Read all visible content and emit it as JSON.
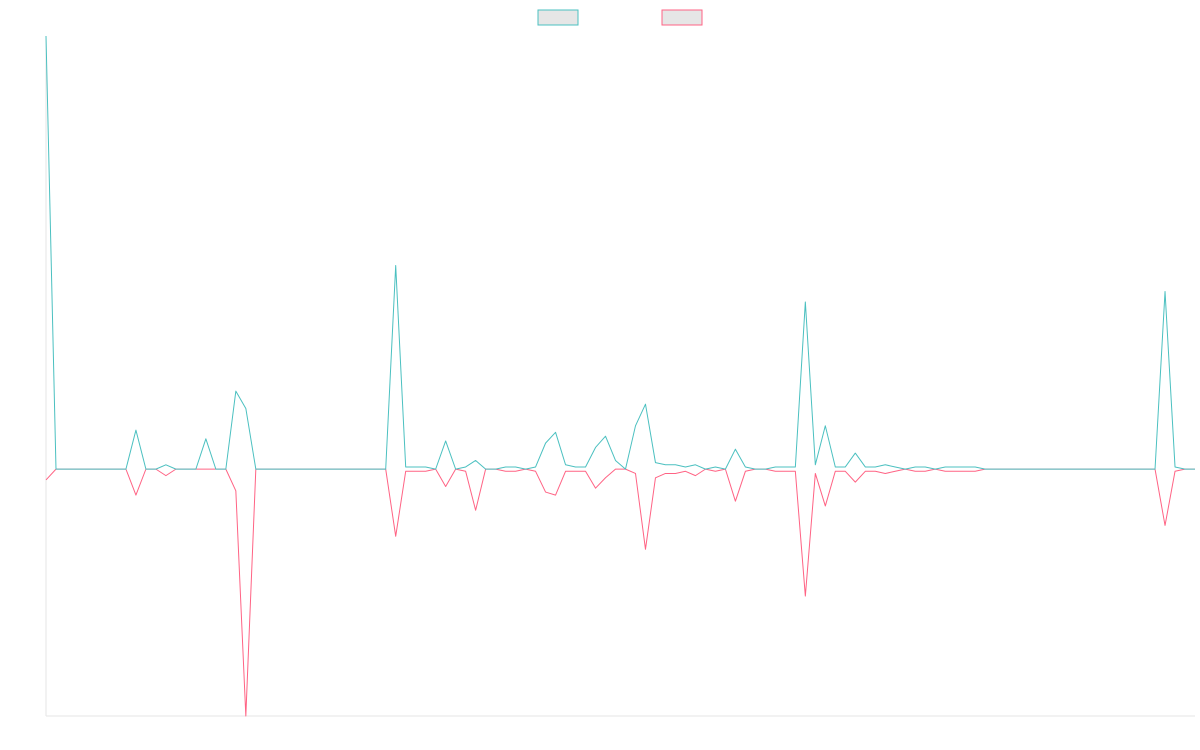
{
  "chart_data": {
    "type": "line",
    "categories": [
      null,
      null,
      null,
      null,
      null,
      null,
      null,
      null,
      null,
      null,
      null,
      null,
      null,
      null,
      null,
      null,
      null,
      null,
      null,
      null,
      null,
      null,
      null,
      null,
      null,
      null,
      null,
      null,
      null,
      null,
      null,
      null,
      null,
      null,
      null,
      null,
      null,
      null,
      null,
      null,
      null,
      null,
      null,
      null,
      null,
      null,
      null,
      null,
      null,
      null,
      null,
      null,
      null,
      null,
      null,
      null,
      null,
      null,
      null,
      null,
      null,
      null,
      null,
      null,
      null,
      null,
      null,
      null,
      null,
      null,
      null,
      null,
      null,
      null,
      null,
      null,
      null,
      null,
      null,
      null,
      null,
      null,
      null,
      null,
      null,
      null,
      null,
      null,
      null,
      null,
      null,
      null,
      null,
      null,
      null,
      null,
      null,
      null,
      null,
      null,
      null,
      null,
      null,
      null,
      null,
      null,
      null,
      null,
      null,
      null,
      null,
      null,
      null,
      null,
      null,
      null
    ],
    "series": [
      {
        "color": "#4bc0c0",
        "values": [
          100,
          0,
          0,
          0,
          0,
          0,
          0,
          0,
          0,
          9,
          0,
          0,
          1,
          0,
          0,
          0,
          7,
          0,
          0,
          18,
          14,
          0,
          0,
          0,
          0,
          0,
          0,
          0,
          0,
          0,
          0,
          0,
          0,
          0,
          0,
          47,
          0.5,
          0.5,
          0.5,
          0,
          6.5,
          0,
          0.5,
          2,
          0,
          0,
          0.5,
          0.5,
          0,
          0.5,
          6,
          8.5,
          1,
          0.5,
          0.5,
          5,
          7.6,
          2,
          0,
          10,
          15,
          1.5,
          1,
          1,
          0.5,
          1,
          0,
          0.5,
          0,
          4.6,
          0.5,
          0,
          0,
          0.5,
          0.5,
          0.5,
          38.6,
          1,
          10,
          0.5,
          0.5,
          3.7,
          0.5,
          0.5,
          1,
          0.5,
          0,
          0.5,
          0.5,
          0,
          0.5,
          0.5,
          0.5,
          0.5,
          0,
          0,
          0,
          0,
          0,
          0,
          0,
          0,
          0,
          0,
          0,
          0,
          0,
          0,
          0,
          0,
          0,
          0,
          41,
          0.5,
          0,
          0
        ]
      },
      {
        "color": "#ff6384",
        "values": [
          -2.5,
          0,
          0,
          0,
          0,
          0,
          0,
          0,
          0,
          -6,
          0,
          0,
          -1.5,
          0,
          0,
          0,
          0,
          0,
          0,
          -5,
          -57,
          0,
          0,
          0,
          0,
          0,
          0,
          0,
          0,
          0,
          0,
          0,
          0,
          0,
          0,
          -15.5,
          -0.5,
          -0.5,
          -0.5,
          0,
          -4,
          0,
          -0.5,
          -9.5,
          0,
          0,
          -0.5,
          -0.5,
          0,
          -0.5,
          -5.3,
          -6,
          -0.5,
          -0.5,
          -0.5,
          -4.4,
          -2,
          0,
          0,
          -1,
          -18.5,
          -2,
          -1,
          -1,
          -0.5,
          -1.5,
          0,
          -0.5,
          0,
          -7.4,
          -0.5,
          0,
          0,
          -0.5,
          -0.5,
          -0.5,
          -29.3,
          -1,
          -8.5,
          -0.5,
          -0.5,
          -3,
          -0.5,
          -0.5,
          -1,
          -0.5,
          0,
          -0.5,
          -0.5,
          0,
          -0.5,
          -0.5,
          -0.5,
          -0.5,
          0,
          0,
          0,
          0,
          0,
          0,
          0,
          0,
          0,
          0,
          0,
          0,
          0,
          0,
          0,
          0,
          0,
          0,
          -13,
          -0.5,
          0,
          0
        ]
      }
    ],
    "ylim": [
      -57,
      100
    ],
    "legend": "top"
  }
}
